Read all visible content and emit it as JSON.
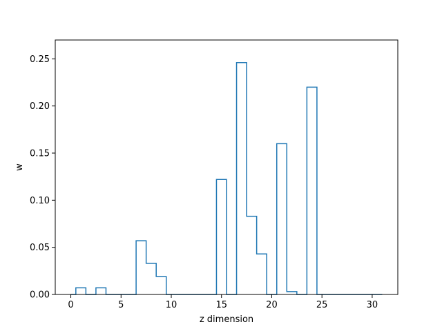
{
  "chart_data": {
    "type": "bar",
    "style": "step-outline",
    "title": "",
    "xlabel": "z dimension",
    "ylabel": "w",
    "xlim": [
      -1.55,
      32.55
    ],
    "ylim": [
      0,
      0.27
    ],
    "xticks": [
      0,
      5,
      10,
      15,
      20,
      25,
      30
    ],
    "yticks": [
      0.0,
      0.05,
      0.1,
      0.15,
      0.2,
      0.25
    ],
    "ytick_labels": [
      "0.00",
      "0.05",
      "0.10",
      "0.15",
      "0.20",
      "0.25"
    ],
    "grid": false,
    "line_color": "#1f77b4",
    "x": [
      0,
      1,
      2,
      3,
      4,
      5,
      6,
      7,
      8,
      9,
      10,
      11,
      12,
      13,
      14,
      15,
      16,
      17,
      18,
      19,
      20,
      21,
      22,
      23,
      24,
      25,
      26,
      27,
      28,
      29,
      30,
      31
    ],
    "values": [
      0,
      0.007,
      0,
      0.007,
      0,
      0,
      0,
      0.057,
      0.033,
      0.019,
      0,
      0,
      0,
      0,
      0,
      0.122,
      0,
      0.246,
      0.083,
      0.043,
      0,
      0.16,
      0.003,
      0,
      0.22,
      0,
      0,
      0,
      0,
      0,
      0,
      0
    ]
  }
}
